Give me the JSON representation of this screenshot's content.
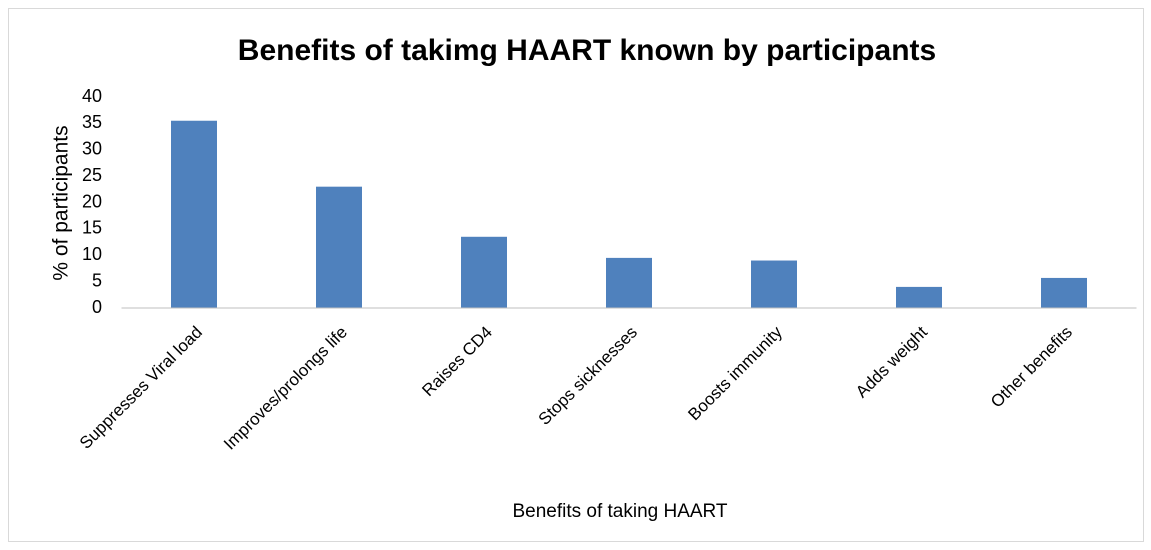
{
  "chart_data": {
    "type": "bar",
    "title": "Benefits of takimg HAART known by participants",
    "x_label": "Benefits of taking HAART",
    "y_label": "% of participants",
    "categories": [
      "Suppresses Viral load",
      "Improves/prolongs life",
      "Raises CD4",
      "Stops sicknesses",
      "Boosts immunity",
      "Adds weight",
      "Other benefits"
    ],
    "values": [
      35.5,
      23,
      13.5,
      9.5,
      9,
      4,
      5.7
    ],
    "color": "#4f81bd",
    "ylim": [
      0,
      40
    ],
    "yticks": [
      0,
      5,
      10,
      15,
      20,
      25,
      30,
      35,
      40
    ],
    "grid": false
  }
}
